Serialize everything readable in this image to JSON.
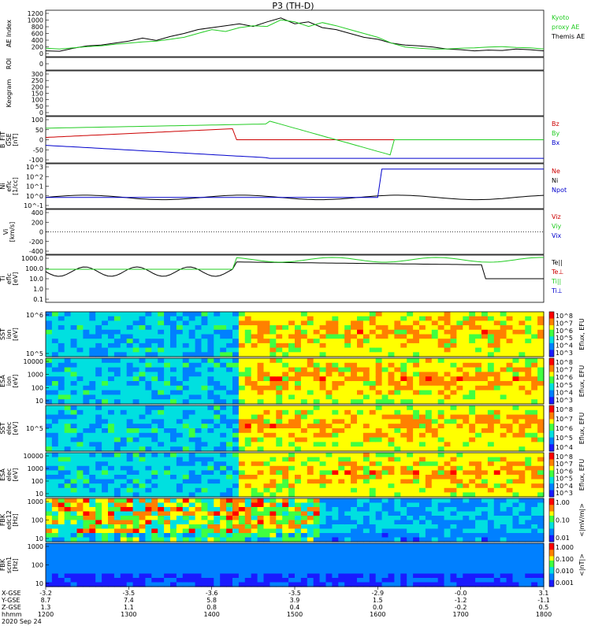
{
  "title": "P3 (TH-D)",
  "panels": [
    {
      "id": "ae",
      "ylabel_lines": [
        "AE Index"
      ],
      "ticks": [
        "1200",
        "1000",
        "800",
        "600",
        "400",
        "200",
        "0"
      ],
      "legend": [
        {
          "text": "Kyoto",
          "color": "#22cc22"
        },
        {
          "text": "proxy AE",
          "color": "#22cc22"
        },
        {
          "text": "Themis AE",
          "color": "#000000"
        }
      ]
    },
    {
      "id": "roi",
      "ylabel_lines": [
        "ROI"
      ],
      "ticks": [
        "0"
      ],
      "legend": []
    },
    {
      "id": "keogram",
      "ylabel_lines": [
        "Keogram"
      ],
      "ticks": [
        "300",
        "250",
        "200",
        "150",
        "100",
        "50",
        "0"
      ],
      "legend": []
    },
    {
      "id": "bfit",
      "ylabel_lines": [
        "B_FIT",
        "GSE",
        "[nT]"
      ],
      "ticks": [
        "100",
        "50",
        "0",
        "-50",
        "-100"
      ],
      "legend": [
        {
          "text": "Bz",
          "color": "#cc0000"
        },
        {
          "text": "By",
          "color": "#22cc22"
        },
        {
          "text": "Bx",
          "color": "#0000cc"
        }
      ]
    },
    {
      "id": "ni",
      "ylabel_lines": [
        "Ni",
        "eflc",
        "[1/cc]"
      ],
      "ticks": [
        "10^3",
        "10^2",
        "10^1",
        "10^0",
        "10^-1"
      ],
      "legend": [
        {
          "text": "Ne",
          "color": "#cc0000"
        },
        {
          "text": "Ni",
          "color": "#000000"
        },
        {
          "text": "Npot",
          "color": "#0000cc"
        }
      ]
    },
    {
      "id": "vi",
      "ylabel_lines": [
        "Vi",
        "[km/s]"
      ],
      "ticks": [
        "400",
        "200",
        "0",
        "-200",
        "-400"
      ],
      "legend": [
        {
          "text": "Viz",
          "color": "#cc0000"
        },
        {
          "text": "Viy",
          "color": "#22cc22"
        },
        {
          "text": "Vix",
          "color": "#0000cc"
        }
      ]
    },
    {
      "id": "ti",
      "ylabel_lines": [
        "Ti",
        "eflc",
        "[eV]"
      ],
      "ticks": [
        "1000.0",
        "100.0",
        "10.0",
        "1.0",
        "0.1"
      ],
      "legend": [
        {
          "text": "Te||",
          "color": "#000000"
        },
        {
          "text": "Te⊥",
          "color": "#cc0000"
        },
        {
          "text": "Ti||",
          "color": "#22cc22"
        },
        {
          "text": "Ti⊥",
          "color": "#0000cc"
        }
      ]
    },
    {
      "id": "sst_i",
      "ylabel_lines": [
        "SST",
        "ion",
        "[eV]"
      ],
      "ticks": [
        "10^6",
        "10^5"
      ],
      "colorbar_ticks": [
        "10^8",
        "10^7",
        "10^6",
        "10^5",
        "10^4",
        "10^3"
      ],
      "colorbar_label": "Eflux, EFU"
    },
    {
      "id": "esa_i",
      "ylabel_lines": [
        "ESA",
        "ion",
        "[eV]"
      ],
      "ticks": [
        "10000",
        "1000",
        "100",
        "10"
      ],
      "colorbar_ticks": [
        "10^8",
        "10^7",
        "10^6",
        "10^5",
        "10^4",
        "10^3"
      ],
      "colorbar_label": "Eflux, EFU"
    },
    {
      "id": "sst_e",
      "ylabel_lines": [
        "SST",
        "elec",
        "[eV]"
      ],
      "ticks": [
        "10^5"
      ],
      "colorbar_ticks": [
        "10^8",
        "10^7",
        "10^6",
        "10^5",
        "10^4"
      ],
      "colorbar_label": "Eflux, EFU"
    },
    {
      "id": "esa_e",
      "ylabel_lines": [
        "ESA",
        "elec",
        "[eV]"
      ],
      "ticks": [
        "10000",
        "1000",
        "100",
        "10"
      ],
      "colorbar_ticks": [
        "10^8",
        "10^7",
        "10^6",
        "10^5",
        "10^4",
        "10^3"
      ],
      "colorbar_label": "Eflux, EFU"
    },
    {
      "id": "fbk_e",
      "ylabel_lines": [
        "FBK",
        "edc12",
        "[Hz]"
      ],
      "ticks": [
        "1000",
        "100",
        "10"
      ],
      "colorbar_ticks": [
        "1.00",
        "0.10",
        "0.01"
      ],
      "colorbar_label": "<|mV/m|>"
    },
    {
      "id": "fbk_b",
      "ylabel_lines": [
        "FBK",
        "scm1",
        "[Hz]"
      ],
      "ticks": [
        "1000",
        "100",
        "10"
      ],
      "colorbar_ticks": [
        "1.000",
        "0.100",
        "0.010",
        "0.001"
      ],
      "colorbar_label": "<|nT|>"
    }
  ],
  "footer": {
    "row_labels": [
      "X-GSE",
      "Y-GSE",
      "Z-GSE",
      "hhmm",
      "2020 Sep 24"
    ],
    "columns": [
      {
        "x": "-3.2",
        "y": "8.7",
        "z": "1.3",
        "t": "1200"
      },
      {
        "x": "-3.5",
        "y": "7.4",
        "z": "1.1",
        "t": "1300"
      },
      {
        "x": "-3.6",
        "y": "5.8",
        "z": "0.8",
        "t": "1400"
      },
      {
        "x": "-3.5",
        "y": "3.9",
        "z": "0.4",
        "t": "1500"
      },
      {
        "x": "-2.9",
        "y": "1.5",
        "z": "0.0",
        "t": "1600"
      },
      {
        "x": "-0.0",
        "y": "-1.2",
        "z": "-0.2",
        "t": "1700"
      },
      {
        "x": "3.1",
        "y": "-1.1",
        "z": "0.5",
        "t": "1800"
      }
    ]
  },
  "chart_data": {
    "type": "line",
    "title": "P3 (TH-D)",
    "x_ticks": [
      "1200",
      "1300",
      "1400",
      "1500",
      "1600",
      "1700",
      "1800"
    ],
    "xlim": [
      "1200",
      "1800"
    ],
    "series": [
      {
        "name": "Themis AE",
        "color": "#000000",
        "x": [
          1200,
          1210,
          1220,
          1230,
          1240,
          1250,
          1300,
          1310,
          1320,
          1330,
          1340,
          1350,
          1400,
          1410,
          1420,
          1430,
          1440,
          1450,
          1500,
          1510,
          1520,
          1530,
          1540,
          1550,
          1600,
          1610,
          1620,
          1630,
          1640,
          1650,
          1700,
          1710,
          1720,
          1730,
          1740,
          1750,
          1800
        ],
        "y": [
          150,
          140,
          220,
          280,
          300,
          350,
          400,
          480,
          420,
          520,
          600,
          700,
          750,
          800,
          850,
          780,
          900,
          1000,
          850,
          900,
          750,
          700,
          600,
          500,
          450,
          350,
          300,
          280,
          250,
          200,
          180,
          150,
          170,
          160,
          200,
          180,
          150
        ]
      },
      {
        "name": "Kyoto",
        "color": "#22cc22",
        "x": [
          1200,
          1210,
          1220,
          1230,
          1240,
          1250,
          1300,
          1310,
          1320,
          1330,
          1340,
          1350,
          1400,
          1410,
          1420,
          1430,
          1440,
          1450,
          1500,
          1510,
          1520,
          1530,
          1540,
          1550,
          1600,
          1610,
          1620,
          1630,
          1640,
          1650,
          1700,
          1710,
          1720,
          1730,
          1740,
          1750,
          1800
        ],
        "y": [
          220,
          200,
          230,
          260,
          280,
          320,
          350,
          380,
          400,
          450,
          500,
          600,
          700,
          650,
          750,
          800,
          780,
          950,
          900,
          780,
          880,
          800,
          700,
          600,
          500,
          350,
          250,
          220,
          200,
          200,
          220,
          230,
          250,
          260,
          240,
          230,
          200
        ]
      }
    ],
    "ylim": [
      0,
      1200
    ]
  }
}
